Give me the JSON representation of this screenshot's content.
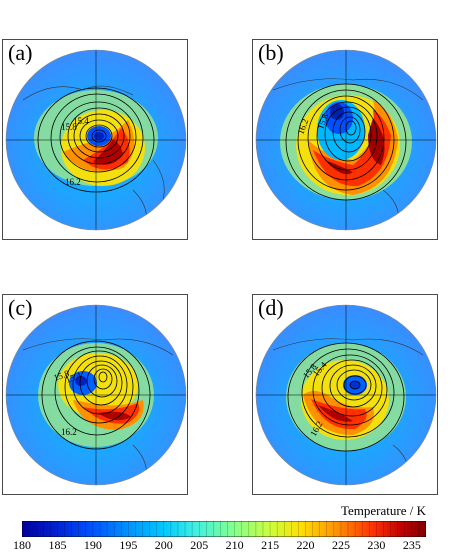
{
  "panels": [
    {
      "id": "a",
      "label": "(a)",
      "contour_labels": [
        "15.8",
        "15.4",
        "16.2"
      ]
    },
    {
      "id": "b",
      "label": "(b)",
      "contour_labels": [
        "16.2",
        "15.8"
      ]
    },
    {
      "id": "c",
      "label": "(c)",
      "contour_labels": [
        "15.8",
        "15.4",
        "16.2"
      ]
    },
    {
      "id": "d",
      "label": "(d)",
      "contour_labels": [
        "15.8",
        "15.4",
        "16.2"
      ]
    }
  ],
  "colorbar": {
    "title": "Temperature / K",
    "ticks": [
      "180",
      "185",
      "190",
      "195",
      "200",
      "205",
      "210",
      "215",
      "220",
      "225",
      "230",
      "235"
    ],
    "min": 180,
    "max": 237,
    "colors": [
      "#0000a0",
      "#0020d0",
      "#0050ff",
      "#0090ff",
      "#00c8ff",
      "#40f0e0",
      "#80ff90",
      "#c8ff40",
      "#ffe000",
      "#ff9000",
      "#ff3000",
      "#c00000",
      "#800000"
    ]
  }
}
